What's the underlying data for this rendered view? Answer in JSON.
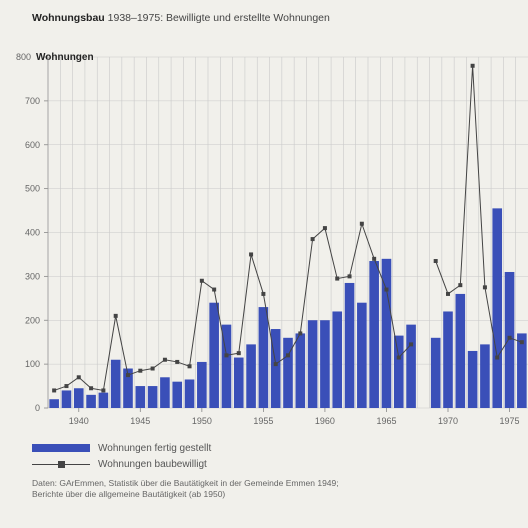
{
  "title": {
    "bold": "Wohnungsbau",
    "rest": "1938–1975: Bewilligte und erstellte Wohnungen"
  },
  "source": {
    "line1": "Daten: GArEmmen, Statistik über die Bautätigkeit in der Gemeinde Emmen 1949;",
    "line2": "Berichte über die allgemeine Bautätigkeit (ab 1950)"
  },
  "colors": {
    "bar": "#3a4fb8",
    "line": "#444444",
    "grid": "#c9c9c9"
  },
  "chart_data": {
    "type": "bar",
    "title": "",
    "unit_label": "Wohnungen",
    "x": [
      1938,
      1939,
      1940,
      1941,
      1942,
      1943,
      1944,
      1945,
      1946,
      1947,
      1948,
      1949,
      1950,
      1951,
      1952,
      1953,
      1954,
      1955,
      1956,
      1957,
      1958,
      1959,
      1960,
      1961,
      1962,
      1963,
      1964,
      1965,
      1966,
      1967,
      1968,
      1969,
      1970,
      1971,
      1972,
      1973,
      1974,
      1975,
      1976
    ],
    "xlim": [
      1937.5,
      1976.5
    ],
    "ylim": [
      0,
      800
    ],
    "yticks": [
      0,
      100,
      200,
      300,
      400,
      500,
      600,
      700,
      800
    ],
    "xticks": [
      1940,
      1945,
      1950,
      1955,
      1960,
      1965,
      1970,
      1975
    ],
    "grid": true,
    "legend_position": "bottom-left",
    "series": [
      {
        "name": "Wohnungen fertig gestellt",
        "type": "bar",
        "values": [
          20,
          40,
          45,
          30,
          35,
          110,
          90,
          50,
          50,
          70,
          60,
          65,
          105,
          240,
          190,
          115,
          145,
          230,
          180,
          160,
          170,
          200,
          200,
          220,
          285,
          240,
          335,
          340,
          165,
          190,
          null,
          160,
          220,
          260,
          130,
          145,
          455,
          310,
          170
        ]
      },
      {
        "name": "Wohnungen baubewilligt",
        "type": "line",
        "values": [
          40,
          50,
          70,
          45,
          40,
          210,
          75,
          85,
          90,
          110,
          105,
          95,
          290,
          270,
          120,
          125,
          350,
          260,
          100,
          120,
          170,
          385,
          410,
          295,
          300,
          420,
          340,
          270,
          115,
          145,
          null,
          335,
          260,
          280,
          780,
          275,
          115,
          160,
          150
        ]
      }
    ]
  }
}
